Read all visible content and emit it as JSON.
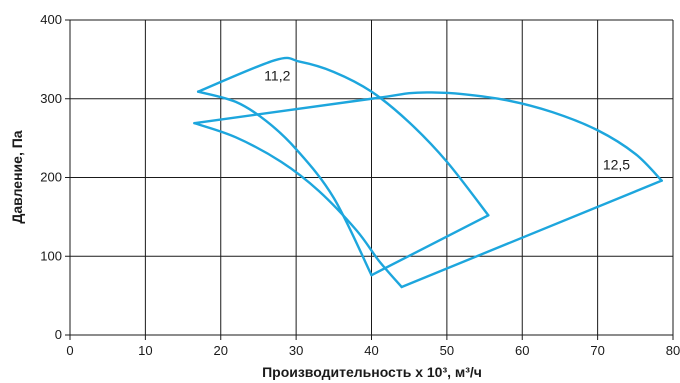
{
  "chart_data": {
    "type": "line",
    "xlabel": "Производительность х 10³, м³/ч",
    "ylabel": "Давление, Па",
    "xlim": [
      0,
      80
    ],
    "ylim": [
      0,
      400
    ],
    "xticks": [
      0,
      10,
      20,
      30,
      40,
      50,
      60,
      70,
      80
    ],
    "yticks": [
      0,
      100,
      200,
      300,
      400
    ],
    "grid": true,
    "line_color": "#1da6dd",
    "annotations": [
      {
        "text": "11,2",
        "x": 27.5,
        "y": 323
      },
      {
        "text": "12,5",
        "x": 72.5,
        "y": 210
      }
    ],
    "series": [
      {
        "points": [
          [
            17,
            309
          ],
          [
            27.2,
            349
          ],
          [
            30.5,
            347
          ],
          [
            35,
            334
          ],
          [
            40,
            309
          ],
          [
            45,
            270
          ],
          [
            50,
            220
          ],
          [
            55.5,
            152
          ]
        ]
      },
      {
        "points": [
          [
            17,
            309
          ],
          [
            22,
            296
          ],
          [
            26,
            272
          ],
          [
            30,
            236
          ],
          [
            35,
            174
          ],
          [
            40,
            76
          ]
        ]
      },
      {
        "points": [
          [
            40,
            76
          ],
          [
            55.5,
            152
          ]
        ]
      },
      {
        "points": [
          [
            16.5,
            269
          ],
          [
            40,
            300
          ],
          [
            45,
            307
          ],
          [
            48,
            308
          ],
          [
            52,
            306
          ],
          [
            58,
            298
          ],
          [
            64,
            283
          ],
          [
            70,
            260
          ],
          [
            75,
            230
          ],
          [
            78.5,
            196
          ]
        ]
      },
      {
        "points": [
          [
            16.5,
            269
          ],
          [
            22,
            251
          ],
          [
            28,
            220
          ],
          [
            33,
            183
          ],
          [
            38,
            133
          ],
          [
            41,
            94
          ],
          [
            44,
            61
          ]
        ]
      },
      {
        "points": [
          [
            44,
            61
          ],
          [
            78.5,
            196
          ]
        ]
      }
    ]
  }
}
